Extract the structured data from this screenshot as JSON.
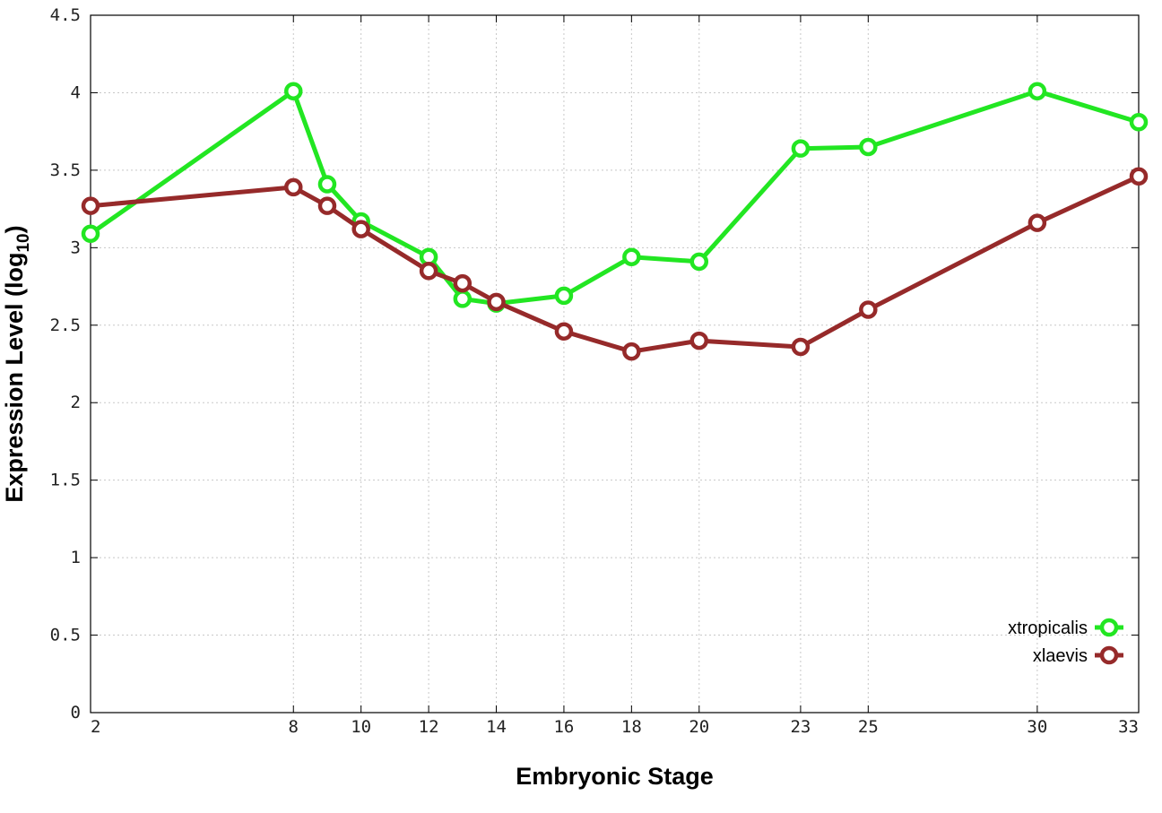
{
  "chart_data": {
    "type": "line",
    "xlabel": "Embryonic Stage",
    "ylabel_main": "Expression Level (log",
    "ylabel_sub": "10",
    "ylabel_close": ")",
    "x": [
      2,
      8,
      9,
      10,
      12,
      13,
      14,
      16,
      18,
      20,
      23,
      25,
      30,
      33
    ],
    "xticks": [
      2,
      8,
      10,
      12,
      14,
      16,
      18,
      20,
      23,
      25,
      30,
      33
    ],
    "yticks": [
      "0",
      "0.5",
      "1",
      "1.5",
      "2",
      "2.5",
      "3",
      "3.5",
      "4",
      "4.5"
    ],
    "xlim": [
      2,
      33
    ],
    "ylim": [
      0,
      4.5
    ],
    "grid": true,
    "legend_position": "bottom-right",
    "series": [
      {
        "name": "xtropicalis",
        "color": "#22e622",
        "values": [
          3.09,
          4.01,
          3.41,
          3.17,
          2.94,
          2.67,
          2.64,
          2.69,
          2.94,
          2.91,
          3.64,
          3.65,
          4.01,
          3.81
        ]
      },
      {
        "name": "xlaevis",
        "color": "#962a2a",
        "values": [
          3.27,
          3.39,
          3.27,
          3.12,
          2.85,
          2.77,
          2.65,
          2.46,
          2.33,
          2.4,
          2.36,
          2.6,
          3.16,
          3.46
        ]
      }
    ]
  }
}
